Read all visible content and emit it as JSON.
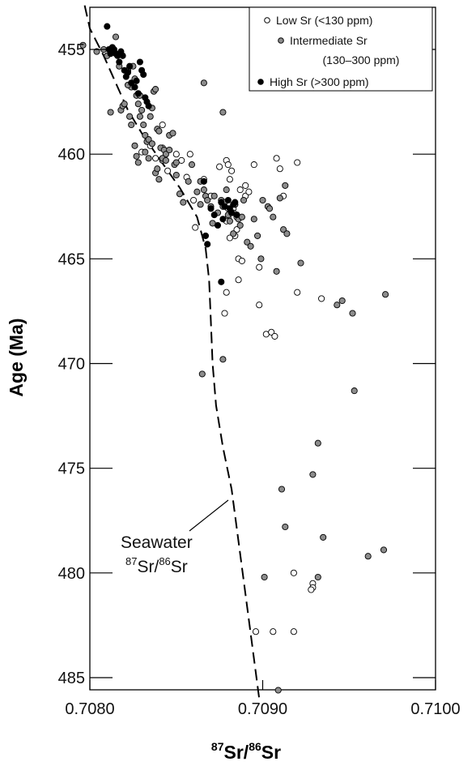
{
  "chart_data": {
    "type": "scatter",
    "xlabel": "87Sr/86Sr",
    "ylabel": "Age (Ma)",
    "xlim": [
      0.708,
      0.71
    ],
    "ylim": [
      453,
      486
    ],
    "y_axis_inverted": true,
    "x_ticks": [
      "0.7080",
      "0.7090",
      "0.7100"
    ],
    "x_tick_values": [
      0.708,
      0.709,
      0.71
    ],
    "y_ticks": [
      "455",
      "460",
      "465",
      "470",
      "475",
      "480",
      "485"
    ],
    "y_tick_values": [
      455,
      460,
      465,
      470,
      475,
      480,
      485
    ],
    "grid": false,
    "legend_position": "top-right",
    "legend": [
      {
        "label": "Low Sr (<130 ppm)",
        "color": "#ffffff"
      },
      {
        "label": "Intermediate Sr",
        "label2": "(130–300 ppm)",
        "color": "#8c8c8c"
      },
      {
        "label": "High Sr (>300 ppm)",
        "color": "#000000"
      }
    ],
    "annotation": {
      "line1": "Seawater",
      "line2_main": "Sr/",
      "line2_sup1": "87",
      "line2_sup2": "86",
      "line2_end": "Sr"
    },
    "curve": {
      "name": "Seawater 87Sr/86Sr",
      "style": "dashed",
      "x": [
        0.70797,
        0.708,
        0.70808,
        0.70815,
        0.70822,
        0.7083,
        0.7084,
        0.70852,
        0.70862,
        0.70867,
        0.70869,
        0.7087,
        0.70871,
        0.70873,
        0.70877,
        0.70882,
        0.7089,
        0.70898
      ],
      "y": [
        452.9,
        454.0,
        455.3,
        456.6,
        457.9,
        459.0,
        460.2,
        461.6,
        463.0,
        464.5,
        466.0,
        468.0,
        470.0,
        472.0,
        474.0,
        476.0,
        481.0,
        486.0
      ]
    },
    "series": [
      {
        "name": "Low Sr (<130 ppm)",
        "color": "#ffffff",
        "x": [
          0.7083,
          0.70835,
          0.70838,
          0.70842,
          0.70842,
          0.70845,
          0.7085,
          0.70853,
          0.70856,
          0.70858,
          0.7086,
          0.70861,
          0.70866,
          0.7087,
          0.70875,
          0.70879,
          0.7088,
          0.70882,
          0.70883,
          0.70884,
          0.70885,
          0.70886,
          0.70888,
          0.7089,
          0.70895,
          0.70908,
          0.7091,
          0.70912,
          0.7092,
          0.70898,
          0.70878,
          0.70879,
          0.70886,
          0.70898,
          0.7092,
          0.70934,
          0.70902,
          0.70905,
          0.70907,
          0.70918,
          0.70929,
          0.70929,
          0.70928,
          0.70896,
          0.70906,
          0.70918,
          0.7088,
          0.70883,
          0.70885,
          0.70887,
          0.7089,
          0.70881,
          0.7088,
          0.70879,
          0.70881,
          0.70884,
          0.70892
        ],
        "y": [
          459.9,
          459.6,
          460.2,
          458.6,
          459.7,
          460.8,
          460.0,
          460.3,
          461.1,
          460.0,
          462.2,
          463.5,
          461.2,
          462.0,
          460.6,
          460.3,
          460.5,
          460.8,
          462.6,
          463.9,
          463.6,
          465.0,
          465.1,
          462.0,
          460.5,
          460.2,
          460.7,
          462.0,
          460.4,
          465.4,
          467.6,
          466.6,
          466.0,
          467.2,
          466.6,
          466.9,
          468.6,
          468.5,
          468.7,
          480.0,
          480.5,
          480.7,
          480.8,
          482.8,
          482.8,
          482.8,
          462.6,
          462.8,
          463.0,
          461.7,
          461.5,
          461.2,
          463.0,
          463.2,
          464.0,
          462.4,
          461.8
        ]
      },
      {
        "name": "Intermediate Sr (130–300 ppm)",
        "color": "#8c8c8c",
        "x": [
          0.70796,
          0.70804,
          0.70808,
          0.7081,
          0.70815,
          0.70817,
          0.70818,
          0.70812,
          0.70819,
          0.70822,
          0.70824,
          0.70825,
          0.70826,
          0.70827,
          0.70828,
          0.70829,
          0.7083,
          0.70831,
          0.70832,
          0.70833,
          0.70834,
          0.70835,
          0.70836,
          0.70837,
          0.70838,
          0.70839,
          0.7084,
          0.70841,
          0.70842,
          0.70843,
          0.70844,
          0.70846,
          0.70848,
          0.70849,
          0.7085,
          0.7082,
          0.70822,
          0.70823,
          0.70824,
          0.70826,
          0.70827,
          0.70828,
          0.70829,
          0.70832,
          0.70834,
          0.70836,
          0.70838,
          0.70839,
          0.7084,
          0.70842,
          0.70844,
          0.70846,
          0.7085,
          0.70852,
          0.70854,
          0.70857,
          0.70859,
          0.70862,
          0.70864,
          0.70866,
          0.70867,
          0.70868,
          0.7087,
          0.70872,
          0.70874,
          0.70876,
          0.70877,
          0.70878,
          0.70879,
          0.7088,
          0.70881,
          0.70882,
          0.70883,
          0.70884,
          0.70885,
          0.70886,
          0.70887,
          0.70888,
          0.70889,
          0.70891,
          0.70893,
          0.70895,
          0.70897,
          0.709,
          0.70903,
          0.70904,
          0.70906,
          0.7091,
          0.70912,
          0.70914,
          0.70922,
          0.70866,
          0.70877,
          0.70899,
          0.70908,
          0.70913,
          0.70943,
          0.70946,
          0.70952,
          0.70971,
          0.70953,
          0.70932,
          0.70929,
          0.70911,
          0.70913,
          0.70935,
          0.70961,
          0.7097,
          0.70932,
          0.70901,
          0.70909,
          0.70865,
          0.70877,
          0.70864,
          0.70871
        ],
        "y": [
          454.8,
          455.1,
          455.0,
          455.3,
          454.4,
          455.8,
          457.9,
          458.0,
          457.7,
          456.0,
          456.8,
          455.8,
          456.4,
          457.2,
          457.6,
          458.2,
          457.9,
          458.6,
          459.1,
          459.4,
          459.3,
          458.2,
          457.8,
          457.0,
          456.9,
          458.8,
          458.9,
          459.7,
          460.3,
          459.8,
          460.0,
          459.1,
          459.0,
          460.5,
          460.4,
          457.6,
          456.7,
          458.2,
          458.6,
          459.6,
          460.1,
          460.4,
          457.2,
          459.9,
          460.2,
          459.5,
          460.9,
          460.7,
          461.2,
          460.2,
          460.3,
          459.8,
          461.0,
          461.9,
          462.3,
          461.3,
          460.5,
          461.8,
          461.3,
          461.7,
          462.0,
          462.2,
          462.5,
          462.0,
          462.8,
          462.2,
          462.5,
          462.3,
          461.7,
          462.9,
          463.2,
          462.8,
          463.8,
          462.4,
          462.9,
          463.1,
          463.4,
          463.0,
          462.2,
          464.2,
          464.4,
          463.1,
          463.9,
          462.2,
          462.5,
          462.6,
          463.0,
          462.1,
          463.6,
          463.8,
          465.2,
          456.6,
          458.0,
          465.0,
          465.6,
          461.5,
          467.2,
          467.0,
          467.6,
          466.7,
          471.3,
          473.8,
          475.3,
          476.0,
          477.8,
          478.3,
          479.2,
          478.9,
          480.2,
          480.2,
          485.6,
          470.5,
          469.8,
          462.4,
          463.3
        ]
      },
      {
        "name": "High Sr (>300 ppm)",
        "color": "#000000",
        "x": [
          0.7081,
          0.70811,
          0.70812,
          0.70813,
          0.70814,
          0.70815,
          0.70816,
          0.70817,
          0.70818,
          0.70819,
          0.7082,
          0.70821,
          0.70822,
          0.70823,
          0.70824,
          0.70826,
          0.70827,
          0.70828,
          0.70829,
          0.7083,
          0.70831,
          0.70832,
          0.70833,
          0.70834,
          0.70866,
          0.70867,
          0.70868,
          0.7087,
          0.70872,
          0.70874,
          0.70876,
          0.70877,
          0.70878,
          0.7088,
          0.70881,
          0.70882,
          0.70883,
          0.70884,
          0.70885,
          0.70876
        ],
        "y": [
          453.9,
          455.0,
          455.2,
          454.9,
          455.0,
          455.2,
          455.3,
          455.6,
          455.1,
          455.3,
          456.0,
          456.3,
          456.1,
          455.8,
          456.6,
          456.8,
          456.5,
          457.1,
          455.6,
          456.0,
          456.2,
          457.3,
          457.5,
          457.7,
          461.3,
          463.9,
          464.3,
          462.6,
          462.9,
          463.4,
          462.3,
          463.1,
          462.5,
          462.2,
          462.6,
          462.8,
          462.4,
          462.3,
          462.9,
          466.1
        ]
      }
    ]
  }
}
